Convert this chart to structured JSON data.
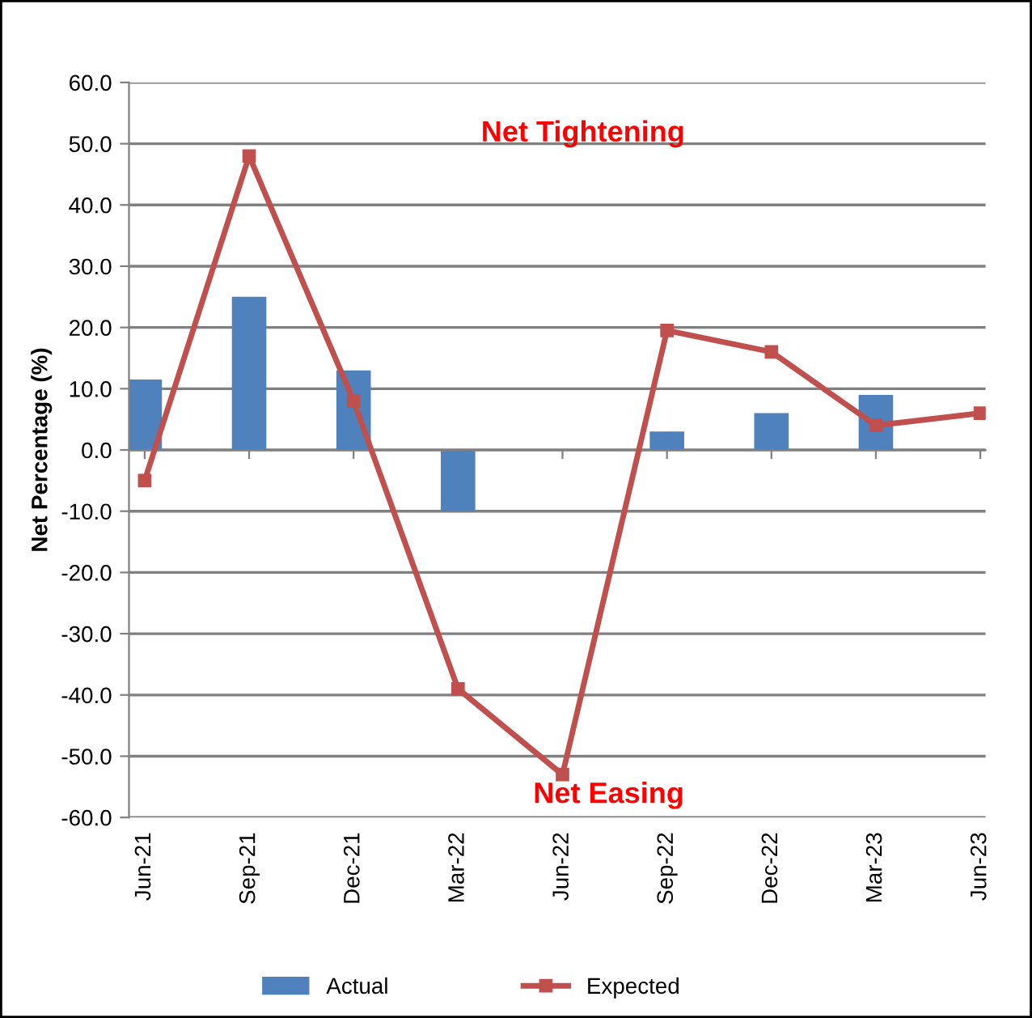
{
  "chart_data": {
    "type": "bar",
    "ylabel": "Net Percentage (%)",
    "categories": [
      "Jun-21",
      "Sep-21",
      "Dec-21",
      "Mar-22",
      "Jun-22",
      "Sep-22",
      "Dec-22",
      "Mar-23",
      "Jun-23"
    ],
    "series": [
      {
        "name": "Actual",
        "color": "#4f81bd",
        "values": [
          11.5,
          25,
          13,
          -10,
          null,
          3,
          6,
          9,
          null
        ]
      },
      {
        "name": "Expected",
        "type": "line",
        "color": "#c0504d",
        "marker": "square",
        "values": [
          -5,
          48,
          8,
          -39,
          -53,
          19.5,
          16,
          4,
          6
        ]
      }
    ],
    "ylim": [
      -60,
      60
    ],
    "yticks": [
      {
        "value": -60,
        "label": "-60.0"
      },
      {
        "value": -50,
        "label": "-50.0"
      },
      {
        "value": -40,
        "label": "-40.0"
      },
      {
        "value": -30,
        "label": "-30.0"
      },
      {
        "value": -20,
        "label": "-20.0"
      },
      {
        "value": -10,
        "label": "-10.0"
      },
      {
        "value": 0,
        "label": "0.0"
      },
      {
        "value": 10,
        "label": "10.0"
      },
      {
        "value": 20,
        "label": "20.0"
      },
      {
        "value": 30,
        "label": "30.0"
      },
      {
        "value": 40,
        "label": "40.0"
      },
      {
        "value": 50,
        "label": "50.0"
      },
      {
        "value": 60,
        "label": "60.0"
      }
    ],
    "grid": "y",
    "legend": "bottom",
    "annotations": [
      "Net Tightening",
      "Net Easing"
    ]
  }
}
